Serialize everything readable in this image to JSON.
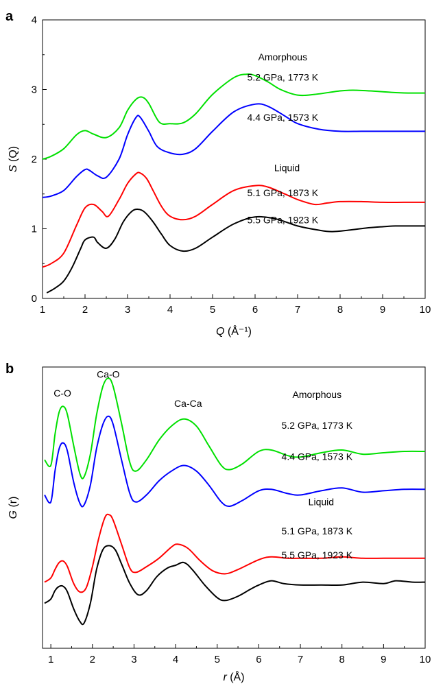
{
  "chart_data": [
    {
      "panel_label": "a",
      "type": "line",
      "xlabel": "Q (Å⁻¹)",
      "xlabel_var": "Q",
      "xlabel_unit": " (Å⁻¹)",
      "ylabel": "S (Q)",
      "ylabel_var": "S",
      "ylabel_unit": " (Q)",
      "xlim": [
        1,
        10
      ],
      "ylim": [
        0,
        4
      ],
      "xticks": [
        "1",
        "2",
        "3",
        "4",
        "5",
        "6",
        "7",
        "8",
        "9",
        "10"
      ],
      "yticks": [
        "0",
        "1",
        "2",
        "3",
        "4"
      ],
      "grid": false,
      "annotations": [
        {
          "text": "Amorphous",
          "x": 6.65,
          "y": 3.42
        },
        {
          "text": "5.2 GPa, 1773 K",
          "x": 6.65,
          "y": 3.13
        },
        {
          "text": "4.4 GPa, 1573 K",
          "x": 6.65,
          "y": 2.55
        },
        {
          "text": "Liquid",
          "x": 6.75,
          "y": 1.83
        },
        {
          "text": "5.1 GPa, 1873 K",
          "x": 6.65,
          "y": 1.47
        },
        {
          "text": "5.5 GPa, 1923 K",
          "x": 6.65,
          "y": 1.08
        }
      ],
      "series": [
        {
          "color": "#00e000",
          "x": [
            1.0,
            1.2,
            1.5,
            1.8,
            2.0,
            2.2,
            2.5,
            2.8,
            3.0,
            3.2,
            3.35,
            3.5,
            3.75,
            4.0,
            4.3,
            4.6,
            5.0,
            5.5,
            5.8,
            6.0,
            6.3,
            6.6,
            7.0,
            7.4,
            8.0,
            8.3,
            8.7,
            9.2,
            9.6,
            10.0
          ],
          "y": [
            2.0,
            2.04,
            2.15,
            2.35,
            2.41,
            2.36,
            2.31,
            2.45,
            2.7,
            2.86,
            2.89,
            2.8,
            2.53,
            2.51,
            2.52,
            2.65,
            2.93,
            3.17,
            3.22,
            3.2,
            3.11,
            3.0,
            2.92,
            2.93,
            2.98,
            2.99,
            2.98,
            2.96,
            2.95,
            2.95
          ]
        },
        {
          "color": "#0000ff",
          "x": [
            1.0,
            1.2,
            1.5,
            1.8,
            2.0,
            2.1,
            2.3,
            2.5,
            2.8,
            3.0,
            3.2,
            3.3,
            3.5,
            3.7,
            4.0,
            4.3,
            4.6,
            5.0,
            5.5,
            6.0,
            6.3,
            6.7,
            7.0,
            7.5,
            8.0,
            8.5,
            9.0,
            9.5,
            10.0
          ],
          "y": [
            1.45,
            1.47,
            1.55,
            1.75,
            1.85,
            1.84,
            1.76,
            1.74,
            2.0,
            2.35,
            2.6,
            2.6,
            2.4,
            2.18,
            2.09,
            2.07,
            2.15,
            2.4,
            2.68,
            2.79,
            2.76,
            2.62,
            2.51,
            2.43,
            2.4,
            2.4,
            2.4,
            2.4,
            2.4
          ]
        },
        {
          "color": "#ff0000",
          "x": [
            1.0,
            1.2,
            1.5,
            1.8,
            2.0,
            2.2,
            2.4,
            2.55,
            2.8,
            3.0,
            3.2,
            3.3,
            3.45,
            3.6,
            3.8,
            4.0,
            4.3,
            4.6,
            5.0,
            5.5,
            6.0,
            6.3,
            6.7,
            7.0,
            7.4,
            7.7,
            8.0,
            8.5,
            9.0,
            9.5,
            10.0
          ],
          "y": [
            0.45,
            0.5,
            0.65,
            1.05,
            1.3,
            1.35,
            1.25,
            1.18,
            1.42,
            1.65,
            1.79,
            1.8,
            1.72,
            1.55,
            1.32,
            1.18,
            1.13,
            1.18,
            1.35,
            1.55,
            1.62,
            1.6,
            1.5,
            1.42,
            1.35,
            1.37,
            1.39,
            1.39,
            1.38,
            1.38,
            1.38
          ]
        },
        {
          "color": "#000000",
          "x": [
            1.1,
            1.3,
            1.5,
            1.7,
            1.9,
            2.0,
            2.2,
            2.3,
            2.5,
            2.7,
            2.9,
            3.1,
            3.25,
            3.4,
            3.6,
            3.8,
            4.0,
            4.3,
            4.6,
            5.0,
            5.5,
            6.0,
            6.5,
            7.0,
            7.5,
            7.8,
            8.2,
            8.6,
            9.0,
            9.3,
            9.7,
            10.0
          ],
          "y": [
            0.08,
            0.15,
            0.25,
            0.45,
            0.72,
            0.84,
            0.88,
            0.8,
            0.72,
            0.85,
            1.1,
            1.25,
            1.28,
            1.24,
            1.1,
            0.92,
            0.76,
            0.68,
            0.72,
            0.88,
            1.07,
            1.17,
            1.14,
            1.04,
            0.98,
            0.96,
            0.98,
            1.01,
            1.03,
            1.04,
            1.04,
            1.04
          ]
        }
      ]
    },
    {
      "panel_label": "b",
      "type": "line",
      "xlabel": "r (Å)",
      "xlabel_var": "r",
      "xlabel_unit": " (Å)",
      "ylabel": "G (r)",
      "ylabel_var": "G",
      "ylabel_unit": " (r)",
      "xlim": [
        0.8,
        10
      ],
      "ylim": [
        0,
        10
      ],
      "xticks": [
        "1",
        "2",
        "3",
        "4",
        "5",
        "6",
        "7",
        "8",
        "9",
        "10"
      ],
      "yticks": [],
      "grid": false,
      "annotations": [
        {
          "text": "C-O",
          "x": 1.28,
          "y": 8.95
        },
        {
          "text": "Ca-O",
          "x": 2.38,
          "y": 9.62
        },
        {
          "text": "Ca-Ca",
          "x": 4.3,
          "y": 8.58
        },
        {
          "text": "Amorphous",
          "x": 7.4,
          "y": 8.9
        },
        {
          "text": "5.2 GPa, 1773 K",
          "x": 7.4,
          "y": 7.8
        },
        {
          "text": "4.4 GPa, 1573 K",
          "x": 7.4,
          "y": 6.7
        },
        {
          "text": "Liquid",
          "x": 7.5,
          "y": 5.08
        },
        {
          "text": "5.1 GPa, 1873 K",
          "x": 7.4,
          "y": 4.05
        },
        {
          "text": "5.5 GPa, 1923 K",
          "x": 7.4,
          "y": 3.2
        }
      ],
      "series": [
        {
          "color": "#00e000",
          "x": [
            0.85,
            1.0,
            1.1,
            1.2,
            1.3,
            1.4,
            1.55,
            1.7,
            1.8,
            1.95,
            2.1,
            2.25,
            2.38,
            2.5,
            2.7,
            2.9,
            3.05,
            3.3,
            3.6,
            3.9,
            4.2,
            4.5,
            4.8,
            5.1,
            5.3,
            5.6,
            6.0,
            6.3,
            6.7,
            7.0,
            7.5,
            8.0,
            8.5,
            9.0,
            9.5,
            10.0
          ],
          "y": [
            6.7,
            6.5,
            7.6,
            8.4,
            8.6,
            8.3,
            7.2,
            6.2,
            6.1,
            6.9,
            8.3,
            9.3,
            9.6,
            9.3,
            8.0,
            6.6,
            6.3,
            6.7,
            7.4,
            7.9,
            8.15,
            7.9,
            7.2,
            6.5,
            6.35,
            6.55,
            7.0,
            7.05,
            6.85,
            6.8,
            6.95,
            7.05,
            6.9,
            6.95,
            7.0,
            7.0
          ]
        },
        {
          "color": "#0000ff",
          "x": [
            0.85,
            1.0,
            1.1,
            1.2,
            1.3,
            1.4,
            1.55,
            1.7,
            1.8,
            1.95,
            2.1,
            2.25,
            2.38,
            2.5,
            2.7,
            2.9,
            3.05,
            3.3,
            3.6,
            3.9,
            4.2,
            4.5,
            4.8,
            5.1,
            5.3,
            5.6,
            6.0,
            6.3,
            6.7,
            7.0,
            7.5,
            8.0,
            8.5,
            9.0,
            9.5,
            10.0
          ],
          "y": [
            5.45,
            5.2,
            6.3,
            7.1,
            7.3,
            7.0,
            5.9,
            5.15,
            5.1,
            5.8,
            7.1,
            7.95,
            8.25,
            7.95,
            6.7,
            5.5,
            5.2,
            5.45,
            5.95,
            6.3,
            6.5,
            6.3,
            5.8,
            5.2,
            5.05,
            5.25,
            5.6,
            5.65,
            5.5,
            5.45,
            5.6,
            5.7,
            5.55,
            5.6,
            5.65,
            5.65
          ]
        },
        {
          "color": "#ff0000",
          "x": [
            0.85,
            1.0,
            1.1,
            1.2,
            1.3,
            1.4,
            1.55,
            1.7,
            1.85,
            2.0,
            2.15,
            2.3,
            2.4,
            2.5,
            2.7,
            2.9,
            3.05,
            3.3,
            3.6,
            3.9,
            4.05,
            4.3,
            4.6,
            4.9,
            5.2,
            5.5,
            6.0,
            6.3,
            6.7,
            7.0,
            7.5,
            8.0,
            8.5,
            9.0,
            9.5,
            10.0
          ],
          "y": [
            2.35,
            2.5,
            2.8,
            3.05,
            3.1,
            2.9,
            2.3,
            2.0,
            2.15,
            2.9,
            3.9,
            4.65,
            4.75,
            4.55,
            3.7,
            2.85,
            2.7,
            2.9,
            3.2,
            3.6,
            3.7,
            3.55,
            3.1,
            2.75,
            2.65,
            2.8,
            3.15,
            3.25,
            3.2,
            3.2,
            3.2,
            3.25,
            3.2,
            3.2,
            3.2,
            3.2
          ]
        },
        {
          "color": "#000000",
          "x": [
            0.85,
            1.0,
            1.1,
            1.2,
            1.3,
            1.4,
            1.55,
            1.7,
            1.8,
            1.95,
            2.1,
            2.25,
            2.4,
            2.55,
            2.7,
            2.9,
            3.1,
            3.3,
            3.55,
            3.8,
            4.0,
            4.2,
            4.4,
            4.7,
            5.0,
            5.2,
            5.5,
            5.8,
            6.0,
            6.3,
            6.6,
            7.0,
            7.5,
            8.0,
            8.5,
            9.0,
            9.3,
            9.7,
            10.0
          ],
          "y": [
            1.6,
            1.75,
            2.05,
            2.2,
            2.2,
            2.0,
            1.4,
            0.95,
            0.9,
            1.6,
            2.8,
            3.5,
            3.65,
            3.5,
            3.0,
            2.3,
            1.9,
            2.05,
            2.55,
            2.85,
            2.95,
            3.05,
            2.8,
            2.25,
            1.8,
            1.7,
            1.85,
            2.1,
            2.25,
            2.4,
            2.3,
            2.25,
            2.25,
            2.25,
            2.35,
            2.3,
            2.4,
            2.35,
            2.35
          ]
        }
      ]
    }
  ]
}
